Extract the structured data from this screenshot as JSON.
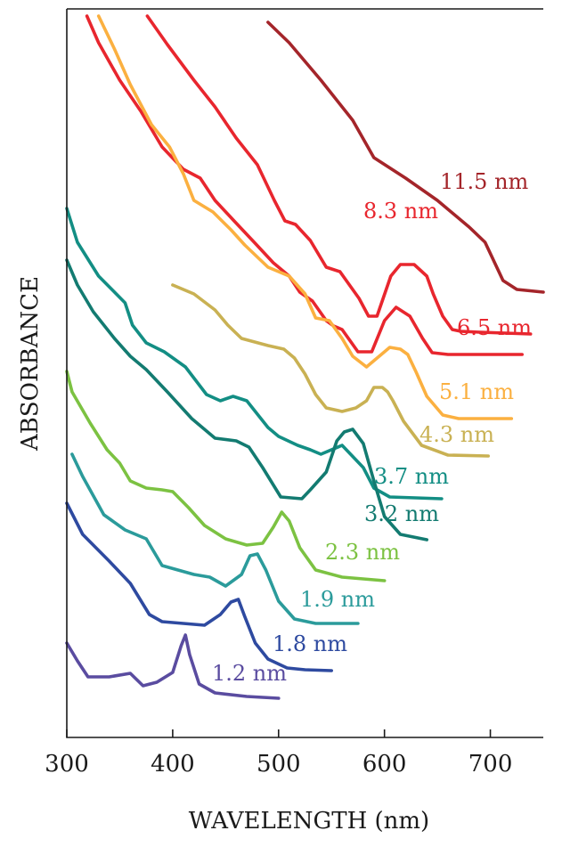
{
  "chart_data": {
    "type": "line",
    "title": "",
    "xlabel": "WAVELENGTH (nm)",
    "ylabel": "ABSORBANCE",
    "xlim": [
      300,
      750
    ],
    "xticks": [
      300,
      400,
      500,
      600,
      700
    ],
    "xtick_labels": [
      "300",
      "400",
      "500",
      "600",
      "700"
    ],
    "y_ticks_shown": false,
    "grid": false,
    "series": [
      {
        "name": "11.5 nm",
        "color": "#a4252a",
        "points": [
          [
            490,
            15
          ],
          [
            510,
            38
          ],
          [
            540,
            80
          ],
          [
            570,
            125
          ],
          [
            590,
            167
          ],
          [
            620,
            190
          ],
          [
            650,
            215
          ],
          [
            680,
            245
          ],
          [
            695,
            262
          ],
          [
            712,
            305
          ],
          [
            725,
            315
          ],
          [
            750,
            318
          ]
        ]
      },
      {
        "name": "8.3 nm",
        "color": "#e8262e",
        "points": [
          [
            376,
            8
          ],
          [
            395,
            40
          ],
          [
            420,
            80
          ],
          [
            440,
            110
          ],
          [
            460,
            145
          ],
          [
            480,
            175
          ],
          [
            496,
            215
          ],
          [
            506,
            238
          ],
          [
            516,
            242
          ],
          [
            530,
            260
          ],
          [
            545,
            290
          ],
          [
            558,
            295
          ],
          [
            576,
            325
          ],
          [
            585,
            345
          ],
          [
            593,
            345
          ],
          [
            606,
            300
          ],
          [
            615,
            287
          ],
          [
            628,
            287
          ],
          [
            640,
            300
          ],
          [
            646,
            320
          ],
          [
            655,
            345
          ],
          [
            664,
            360
          ],
          [
            672,
            362
          ],
          [
            690,
            363
          ],
          [
            738,
            365
          ]
        ]
      },
      {
        "name": "6.5 nm",
        "color": "#e8262e",
        "points": [
          [
            319,
            8
          ],
          [
            330,
            38
          ],
          [
            350,
            80
          ],
          [
            370,
            115
          ],
          [
            390,
            155
          ],
          [
            410,
            180
          ],
          [
            426,
            190
          ],
          [
            440,
            215
          ],
          [
            458,
            238
          ],
          [
            477,
            262
          ],
          [
            495,
            285
          ],
          [
            510,
            300
          ],
          [
            520,
            318
          ],
          [
            532,
            328
          ],
          [
            545,
            350
          ],
          [
            552,
            356
          ],
          [
            560,
            360
          ],
          [
            575,
            385
          ],
          [
            588,
            385
          ],
          [
            600,
            350
          ],
          [
            611,
            335
          ],
          [
            624,
            345
          ],
          [
            636,
            370
          ],
          [
            645,
            386
          ],
          [
            660,
            388
          ],
          [
            730,
            388
          ]
        ]
      },
      {
        "name": "5.1 nm",
        "color": "#fbb040",
        "points": [
          [
            330,
            8
          ],
          [
            345,
            45
          ],
          [
            360,
            85
          ],
          [
            380,
            130
          ],
          [
            397,
            155
          ],
          [
            410,
            185
          ],
          [
            420,
            215
          ],
          [
            438,
            228
          ],
          [
            455,
            248
          ],
          [
            468,
            265
          ],
          [
            490,
            290
          ],
          [
            510,
            300
          ],
          [
            525,
            320
          ],
          [
            535,
            347
          ],
          [
            548,
            350
          ],
          [
            560,
            370
          ],
          [
            570,
            390
          ],
          [
            583,
            402
          ],
          [
            600,
            385
          ],
          [
            605,
            380
          ],
          [
            615,
            382
          ],
          [
            622,
            388
          ],
          [
            630,
            408
          ],
          [
            640,
            435
          ],
          [
            655,
            456
          ],
          [
            670,
            460
          ],
          [
            720,
            460
          ]
        ]
      },
      {
        "name": "4.3 nm",
        "color": "#c9b153",
        "points": [
          [
            400,
            310
          ],
          [
            420,
            320
          ],
          [
            440,
            338
          ],
          [
            452,
            355
          ],
          [
            465,
            370
          ],
          [
            490,
            378
          ],
          [
            505,
            382
          ],
          [
            515,
            392
          ],
          [
            525,
            410
          ],
          [
            535,
            433
          ],
          [
            545,
            448
          ],
          [
            560,
            452
          ],
          [
            573,
            448
          ],
          [
            583,
            440
          ],
          [
            590,
            425
          ],
          [
            598,
            425
          ],
          [
            603,
            430
          ],
          [
            608,
            440
          ],
          [
            618,
            463
          ],
          [
            635,
            490
          ],
          [
            660,
            501
          ],
          [
            698,
            502
          ]
        ]
      },
      {
        "name": "3.7 nm",
        "color": "#138e84",
        "points": [
          [
            300,
            224
          ],
          [
            310,
            262
          ],
          [
            330,
            300
          ],
          [
            355,
            330
          ],
          [
            362,
            355
          ],
          [
            375,
            375
          ],
          [
            392,
            385
          ],
          [
            412,
            402
          ],
          [
            432,
            433
          ],
          [
            445,
            440
          ],
          [
            457,
            435
          ],
          [
            470,
            440
          ],
          [
            478,
            452
          ],
          [
            490,
            470
          ],
          [
            500,
            480
          ],
          [
            518,
            490
          ],
          [
            530,
            495
          ],
          [
            540,
            500
          ],
          [
            560,
            490
          ],
          [
            580,
            515
          ],
          [
            590,
            538
          ],
          [
            605,
            548
          ],
          [
            654,
            550
          ]
        ]
      },
      {
        "name": "3.2 nm",
        "color": "#137b71",
        "points": [
          [
            300,
            282
          ],
          [
            310,
            310
          ],
          [
            325,
            340
          ],
          [
            345,
            370
          ],
          [
            360,
            390
          ],
          [
            375,
            405
          ],
          [
            395,
            430
          ],
          [
            418,
            460
          ],
          [
            440,
            482
          ],
          [
            460,
            485
          ],
          [
            472,
            492
          ],
          [
            485,
            515
          ],
          [
            502,
            548
          ],
          [
            522,
            550
          ],
          [
            530,
            540
          ],
          [
            545,
            520
          ],
          [
            555,
            485
          ],
          [
            562,
            475
          ],
          [
            570,
            472
          ],
          [
            580,
            488
          ],
          [
            590,
            530
          ],
          [
            600,
            570
          ],
          [
            615,
            590
          ],
          [
            640,
            596
          ]
        ]
      },
      {
        "name": "2.3 nm",
        "color": "#7cc242",
        "points": [
          [
            300,
            407
          ],
          [
            305,
            430
          ],
          [
            322,
            465
          ],
          [
            338,
            495
          ],
          [
            350,
            510
          ],
          [
            360,
            530
          ],
          [
            375,
            538
          ],
          [
            390,
            540
          ],
          [
            400,
            542
          ],
          [
            415,
            560
          ],
          [
            430,
            580
          ],
          [
            450,
            595
          ],
          [
            470,
            602
          ],
          [
            485,
            600
          ],
          [
            495,
            582
          ],
          [
            503,
            565
          ],
          [
            510,
            575
          ],
          [
            520,
            605
          ],
          [
            535,
            630
          ],
          [
            560,
            638
          ],
          [
            600,
            642
          ]
        ]
      },
      {
        "name": "1.9 nm",
        "color": "#2b9b9b",
        "points": [
          [
            305,
            500
          ],
          [
            315,
            525
          ],
          [
            335,
            568
          ],
          [
            355,
            585
          ],
          [
            375,
            595
          ],
          [
            390,
            625
          ],
          [
            405,
            630
          ],
          [
            420,
            635
          ],
          [
            435,
            638
          ],
          [
            450,
            648
          ],
          [
            465,
            635
          ],
          [
            473,
            614
          ],
          [
            480,
            612
          ],
          [
            488,
            630
          ],
          [
            500,
            665
          ],
          [
            515,
            685
          ],
          [
            535,
            690
          ],
          [
            575,
            690
          ]
        ]
      },
      {
        "name": "1.8 nm",
        "color": "#2e4aa0",
        "points": [
          [
            300,
            555
          ],
          [
            315,
            590
          ],
          [
            340,
            620
          ],
          [
            360,
            645
          ],
          [
            378,
            680
          ],
          [
            390,
            688
          ],
          [
            410,
            690
          ],
          [
            430,
            692
          ],
          [
            445,
            680
          ],
          [
            455,
            666
          ],
          [
            462,
            663
          ],
          [
            468,
            682
          ],
          [
            478,
            712
          ],
          [
            490,
            730
          ],
          [
            508,
            740
          ],
          [
            525,
            742
          ],
          [
            550,
            743
          ]
        ]
      },
      {
        "name": "1.2 nm",
        "color": "#5a4ca0",
        "points": [
          [
            300,
            712
          ],
          [
            310,
            732
          ],
          [
            320,
            750
          ],
          [
            340,
            750
          ],
          [
            360,
            746
          ],
          [
            372,
            760
          ],
          [
            385,
            756
          ],
          [
            400,
            745
          ],
          [
            408,
            715
          ],
          [
            412,
            703
          ],
          [
            416,
            725
          ],
          [
            425,
            758
          ],
          [
            440,
            768
          ],
          [
            470,
            772
          ],
          [
            500,
            774
          ]
        ]
      }
    ]
  }
}
